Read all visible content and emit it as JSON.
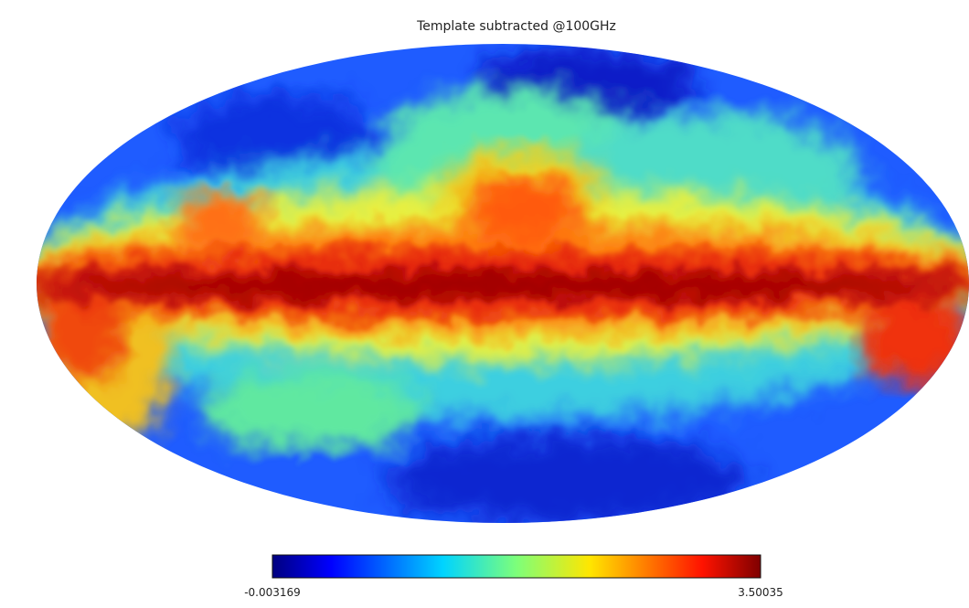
{
  "title": "Template subtracted @100GHz",
  "colorbar": {
    "min": -0.003169,
    "max": 3.50035
  }
}
